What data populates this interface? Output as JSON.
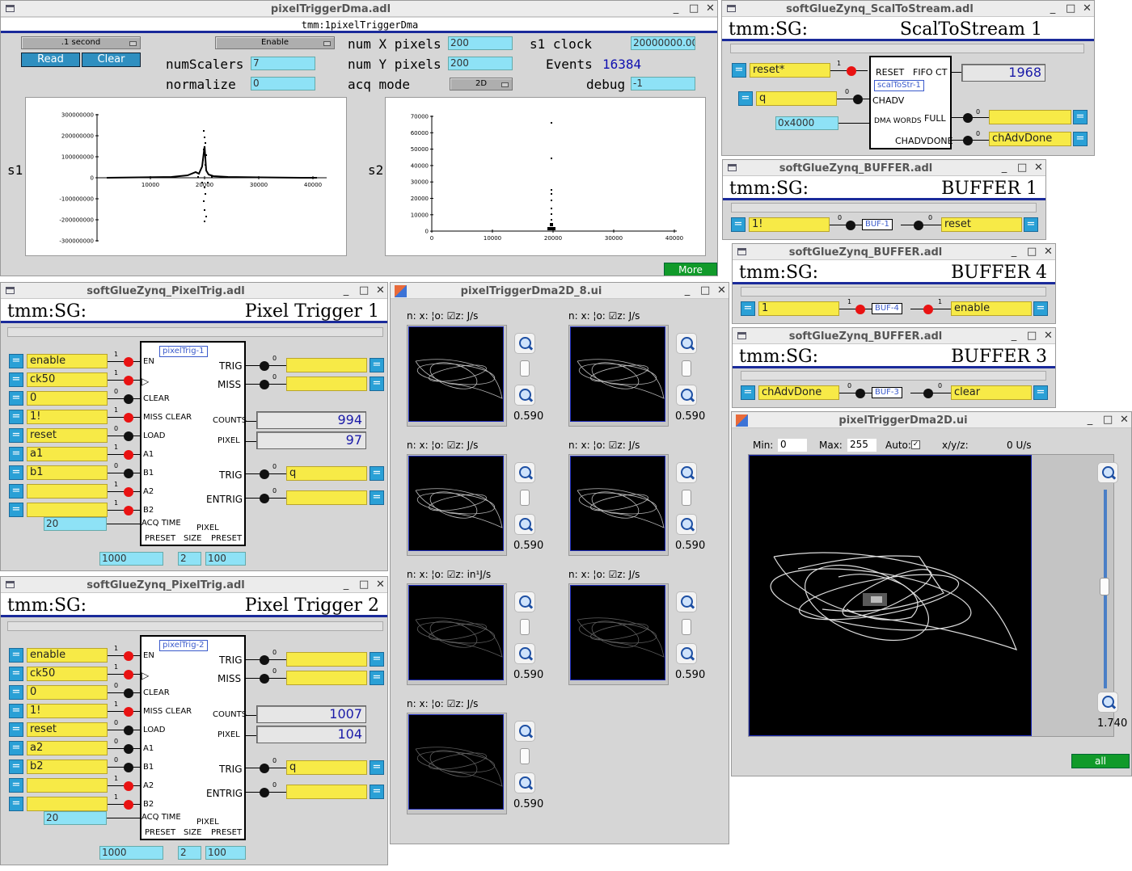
{
  "main": {
    "title": "pixelTriggerDma.adl",
    "prefix": "tmm:1pixelTriggerDma",
    "scan_rate": ".1 second",
    "enable": "Enable",
    "read": "Read",
    "clear": "Clear",
    "num_x_label": "num X pixels",
    "num_x": "200",
    "num_y_label": "num Y pixels",
    "num_y": "200",
    "num_scalers_label": "numScalers",
    "num_scalers": "7",
    "normalize_label": "normalize",
    "normalize": "0",
    "acq_mode_label": "acq mode",
    "acq_mode": "2D",
    "s1_clock_label": "s1 clock",
    "s1_clock": "20000000.00",
    "events_label": "Events",
    "events": "16384",
    "debug_label": "debug",
    "debug": "-1",
    "s1_label": "s1",
    "s2_label": "s2",
    "more": "More"
  },
  "plot_s1": {
    "yticks": [
      "300000000",
      "200000000",
      "100000000",
      "0",
      "-100000000",
      "-200000000",
      "-300000000"
    ],
    "xticks": [
      "10000",
      "20000",
      "30000",
      "40000"
    ]
  },
  "plot_s2": {
    "yticks": [
      "70000",
      "60000",
      "50000",
      "40000",
      "30000",
      "20000",
      "10000",
      "0"
    ],
    "xticks": [
      "0",
      "10000",
      "20000",
      "30000",
      "40000"
    ]
  },
  "scal": {
    "title": "softGlueZynq_ScalToStream.adl",
    "prefix": "tmm:SG:",
    "name": "ScalToStream 1",
    "in1": "reset*",
    "in1_bit": "1",
    "in2": "q",
    "in2_bit": "0",
    "dma": "0x4000",
    "reset_pin": "RESET",
    "fifo_pin": "FIFO CT",
    "chadv_pin": "CHADV",
    "dma_pin": "DMA WORDS",
    "full_pin": "FULL",
    "chadvdone_pin": "CHADVDONE",
    "block": "scalToStr-1",
    "fifo": "1968",
    "out1": "",
    "out1_bit": "0",
    "out2": "chAdvDone",
    "out2_bit": "0"
  },
  "buf1": {
    "title": "softGlueZynq_BUFFER.adl",
    "prefix": "tmm:SG:",
    "name": "BUFFER 1",
    "in": "1!",
    "in_bit": "0",
    "block": "BUF-1",
    "out": "reset",
    "out_bit": "0"
  },
  "buf4": {
    "title": "softGlueZynq_BUFFER.adl",
    "prefix": "tmm:SG:",
    "name": "BUFFER 4",
    "in": "1",
    "in_bit": "1",
    "block": "BUF-4",
    "out": "enable",
    "out_bit": "1"
  },
  "buf3": {
    "title": "softGlueZynq_BUFFER.adl",
    "prefix": "tmm:SG:",
    "name": "BUFFER 3",
    "in": "chAdvDone",
    "in_bit": "0",
    "block": "BUF-3",
    "out": "clear",
    "out_bit": "0"
  },
  "pt1": {
    "title": "softGlueZynq_PixelTrig.adl",
    "prefix": "tmm:SG:",
    "name": "Pixel Trigger 1",
    "block": "pixelTrig-1",
    "inputs": [
      "enable",
      "ck50",
      "0",
      "1!",
      "reset",
      "a1",
      "b1",
      "",
      ""
    ],
    "bits": [
      "1",
      "1",
      "0",
      "1",
      "0",
      "1",
      "0",
      "1",
      "1"
    ],
    "pins": [
      "EN",
      "",
      "CLEAR",
      "MISS CLEAR",
      "LOAD",
      "A1",
      "B1",
      "A2",
      "B2"
    ],
    "trig": "",
    "trig_bit": "0",
    "miss": "",
    "miss_bit": "0",
    "trig2": "q",
    "trig2_bit": "0",
    "entrig": "",
    "entrig_bit": "0",
    "trig_pin": "TRIG",
    "miss_pin": "MISS",
    "counts_pin": "COUNTS",
    "pixel_pin": "PIXEL",
    "trig2_pin": "TRIG",
    "entrig_pin": "ENTRIG",
    "counts": "994",
    "pixel": "97",
    "acq": "20",
    "acq_pin": "ACQ TIME",
    "preset": "1000",
    "size": "2",
    "ppreset": "100",
    "lbl_preset": "PRESET",
    "lbl_size": "SIZE",
    "lbl_pixel": "PIXEL",
    "lbl_ppreset": "PRESET"
  },
  "pt2": {
    "title": "softGlueZynq_PixelTrig.adl",
    "prefix": "tmm:SG:",
    "name": "Pixel Trigger 2",
    "block": "pixelTrig-2",
    "inputs": [
      "enable",
      "ck50",
      "0",
      "1!",
      "reset",
      "a2",
      "b2",
      "",
      ""
    ],
    "bits": [
      "1",
      "1",
      "0",
      "1",
      "0",
      "0",
      "0",
      "1",
      "1"
    ],
    "pins": [
      "EN",
      "",
      "CLEAR",
      "MISS CLEAR",
      "LOAD",
      "A1",
      "B1",
      "A2",
      "B2"
    ],
    "trig": "",
    "trig_bit": "0",
    "miss": "",
    "miss_bit": "0",
    "trig2": "q",
    "trig2_bit": "0",
    "entrig": "",
    "entrig_bit": "0",
    "trig_pin": "TRIG",
    "miss_pin": "MISS",
    "counts_pin": "COUNTS",
    "pixel_pin": "PIXEL",
    "trig2_pin": "TRIG",
    "entrig_pin": "ENTRIG",
    "counts": "1007",
    "pixel": "104",
    "acq": "20",
    "acq_pin": "ACQ TIME",
    "preset": "1000",
    "size": "2",
    "ppreset": "100",
    "lbl_preset": "PRESET",
    "lbl_size": "SIZE",
    "lbl_pixel": "PIXEL",
    "lbl_ppreset": "PRESET"
  },
  "grid": {
    "title": "pixelTriggerDma2D_8.ui",
    "cells": [
      {
        "hdr": "n:  x:  ¦o:  ☑z:     J/s",
        "zoom": "0.590"
      },
      {
        "hdr": "n:  x:  ¦o:  ☑z:     J/s",
        "zoom": "0.590"
      },
      {
        "hdr": "n:  x:  ¦o:  ☑z:     J/s",
        "zoom": "0.590"
      },
      {
        "hdr": "n:  x:  ¦o:  ☑z:     J/s",
        "zoom": "0.590"
      },
      {
        "hdr": "n:  x:  ¦o:  ☑z:  in¹J/s",
        "zoom": "0.590"
      },
      {
        "hdr": "n:  x:  ¦o:  ☑z:     J/s",
        "zoom": "0.590"
      },
      {
        "hdr": "n:  x:  ¦o:  ☑z:     J/s",
        "zoom": "0.590"
      }
    ]
  },
  "big": {
    "title": "pixelTriggerDma2D.ui",
    "min_label": "Min:",
    "min": "0",
    "max_label": "Max:",
    "max": "255",
    "auto_label": "Auto:",
    "xyz_label": "x/y/z:",
    "rate": "0 U/s",
    "zoom": "1.740",
    "all": "all"
  }
}
